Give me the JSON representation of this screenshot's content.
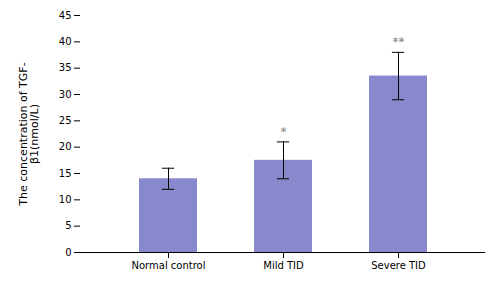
{
  "chart_data": {
    "type": "bar",
    "categories": [
      "Normal control",
      "Mild TID",
      "Severe TID"
    ],
    "values": [
      14.0,
      17.5,
      33.5
    ],
    "errors": [
      2.0,
      3.5,
      4.5
    ],
    "annotations": [
      null,
      "*",
      "**"
    ],
    "color": "#8888CC",
    "ylabel": "The concentration of TGF-\nβ1(nmol/L)",
    "ylim": [
      0,
      45
    ],
    "yticks": [
      0,
      5,
      10,
      15,
      20,
      25,
      30,
      35,
      40,
      45
    ],
    "grid": false
  }
}
